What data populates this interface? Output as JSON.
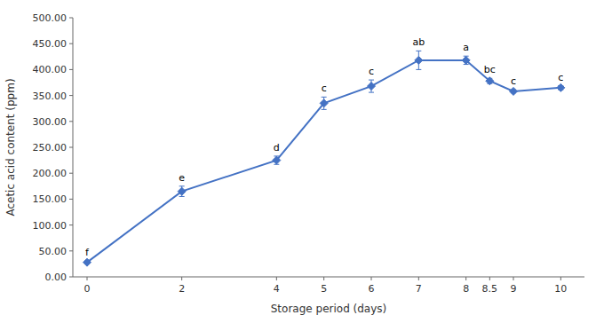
{
  "chart_data": {
    "type": "line",
    "xlabel": "Storage period (days)",
    "ylabel": "Acetic acid content (ppm)",
    "x": [
      0,
      2,
      4,
      5,
      6,
      7,
      8,
      8.5,
      9,
      10
    ],
    "values": [
      28,
      165,
      225,
      335,
      368,
      418,
      418,
      378,
      358,
      365
    ],
    "errors": [
      3,
      10,
      8,
      12,
      12,
      18,
      8,
      5,
      3,
      4
    ],
    "annotations": [
      "f",
      "e",
      "d",
      "c",
      "c",
      "ab",
      "a",
      "bc",
      "c",
      "c"
    ],
    "xlim": [
      -0.3,
      10.5
    ],
    "xticks": [
      0,
      2,
      4,
      5,
      6,
      7,
      8,
      8.5,
      9,
      10
    ],
    "ylim": [
      0,
      500
    ],
    "yticks": [
      {
        "value": 0,
        "label": "0.00"
      },
      {
        "value": 50,
        "label": "50.00"
      },
      {
        "value": 100,
        "label": "100.00"
      },
      {
        "value": 150,
        "label": "150.00"
      },
      {
        "value": 200,
        "label": "200.00"
      },
      {
        "value": 250,
        "label": "250.00"
      },
      {
        "value": 300,
        "label": "300.00"
      },
      {
        "value": 350,
        "label": "350.00"
      },
      {
        "value": 400,
        "label": "400.00"
      },
      {
        "value": 450,
        "label": "450.00"
      },
      {
        "value": 500,
        "label": "500.00"
      }
    ],
    "color": "#4472C4",
    "marker": "diamond",
    "line_style": "solid",
    "grid": false
  }
}
